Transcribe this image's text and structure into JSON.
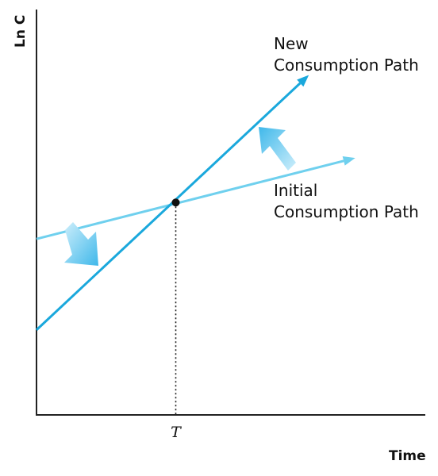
{
  "chart_data": {
    "type": "line",
    "xlabel": "Time",
    "ylabel": "Ln C",
    "x_ticks": [
      {
        "x": 4.5,
        "label": "T"
      }
    ],
    "xlim": [
      0,
      10
    ],
    "ylim": [
      0,
      10
    ],
    "grid": false,
    "series": [
      {
        "name": "New Consumption Path",
        "label_lines": [
          "New",
          "Consumption Path"
        ],
        "color": "#1aa8dc",
        "x": [
          0,
          8.8
        ],
        "y": [
          2.1,
          8.4
        ]
      },
      {
        "name": "Initial Consumption Path",
        "label_lines": [
          "Initial",
          "Consumption Path"
        ],
        "color": "#6fd0ee",
        "x": [
          0,
          10.3
        ],
        "y": [
          4.35,
          6.35
        ]
      }
    ],
    "point": {
      "x": 4.5,
      "y": 5.25
    },
    "shift_arrow_color": "#72cdf0"
  }
}
